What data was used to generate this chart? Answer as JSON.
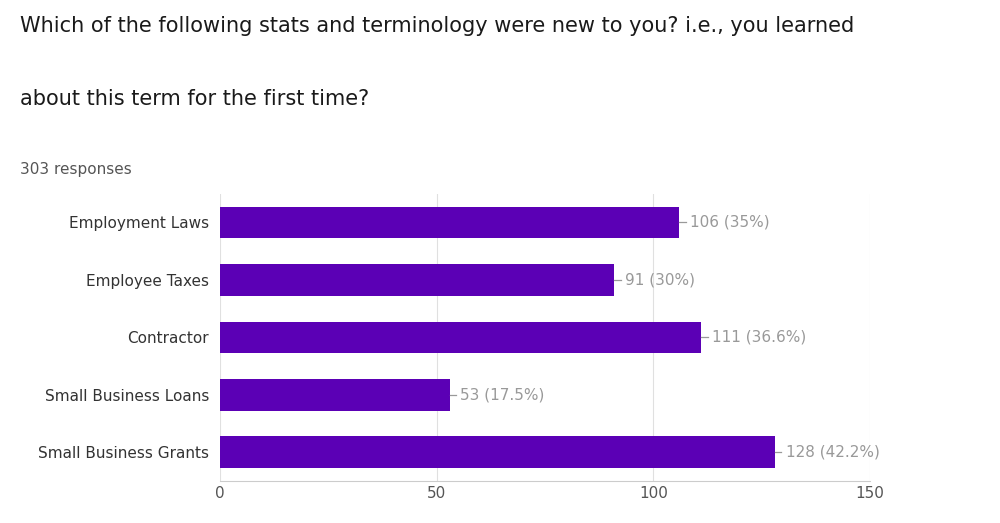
{
  "title_line1": "Which of the following stats and terminology were new to you? i.e., you learned",
  "title_line2": "about this term for the first time?",
  "subtitle": "303 responses",
  "categories": [
    "Employment Laws",
    "Employee Taxes",
    "Contractor",
    "Small Business Loans",
    "Small Business Grants"
  ],
  "values": [
    106,
    91,
    111,
    53,
    128
  ],
  "labels": [
    "106 (35%)",
    "91 (30%)",
    "111 (36.6%)",
    "53 (17.5%)",
    "128 (42.2%)"
  ],
  "bar_color": "#5b00b5",
  "label_color": "#999999",
  "background_color": "#ffffff",
  "xlim": [
    0,
    150
  ],
  "xticks": [
    0,
    50,
    100,
    150
  ],
  "title_fontsize": 15,
  "subtitle_fontsize": 11,
  "label_fontsize": 11,
  "tick_fontsize": 11,
  "category_fontsize": 11,
  "figsize": [
    10.0,
    5.23
  ],
  "dpi": 100
}
